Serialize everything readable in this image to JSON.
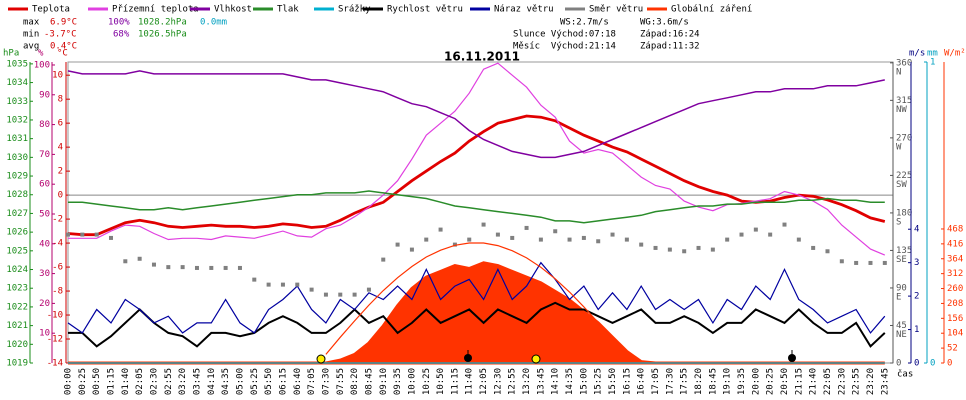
{
  "chart_data": {
    "type": "line",
    "title": "16.11.2011",
    "x_label": "čas",
    "categories": [
      "00:00",
      "00:25",
      "00:50",
      "01:15",
      "01:40",
      "02:05",
      "02:30",
      "02:55",
      "03:20",
      "03:45",
      "04:10",
      "04:35",
      "05:00",
      "05:25",
      "05:50",
      "06:15",
      "06:40",
      "07:05",
      "07:30",
      "07:55",
      "08:20",
      "08:45",
      "09:10",
      "09:35",
      "10:00",
      "10:25",
      "10:50",
      "11:15",
      "11:40",
      "12:05",
      "12:30",
      "12:55",
      "13:20",
      "13:45",
      "14:10",
      "14:35",
      "15:00",
      "15:25",
      "15:50",
      "16:15",
      "16:40",
      "17:05",
      "17:30",
      "17:55",
      "18:20",
      "18:45",
      "19:10",
      "19:35",
      "20:00",
      "20:25",
      "20:50",
      "21:15",
      "21:40",
      "22:05",
      "22:30",
      "22:55",
      "23:20",
      "23:45"
    ],
    "y_unit": "°C",
    "y_color": "#d00000",
    "ylim": [
      -14,
      11.1
    ],
    "yticks": [
      -14,
      -12,
      -10,
      -8,
      -6,
      -4,
      -2,
      0,
      2,
      4,
      6,
      8,
      10
    ],
    "zero_line": true,
    "axes": {
      "hpa": {
        "unit": "hPa",
        "color": "#1a8c1a",
        "lim": [
          1019,
          1035.1
        ],
        "ticks": [
          1019,
          1020,
          1021,
          1022,
          1023,
          1024,
          1025,
          1026,
          1027,
          1028,
          1029,
          1030,
          1031,
          1032,
          1033,
          1034,
          1035
        ]
      },
      "pct": {
        "unit": "%",
        "color": "#b4006e",
        "lim": [
          0,
          101
        ],
        "ticks": [
          10,
          20,
          30,
          40,
          50,
          60,
          70,
          80,
          90,
          100
        ]
      },
      "dir": {
        "color": "#555555",
        "lim": [
          0,
          361
        ],
        "ticks": [
          0,
          45,
          90,
          135,
          180,
          225,
          270,
          315,
          360
        ],
        "compass": [
          {
            "value": 45,
            "label": "NE"
          },
          {
            "value": 90,
            "label": "E"
          },
          {
            "value": 135,
            "label": "SE"
          },
          {
            "value": 180,
            "label": "S"
          },
          {
            "value": 225,
            "label": "SW"
          },
          {
            "value": 270,
            "label": "W"
          },
          {
            "value": 315,
            "label": "NW"
          },
          {
            "value": 360,
            "label": "N"
          }
        ]
      },
      "ms": {
        "unit": "m/s",
        "color": "#000080",
        "lim": [
          0,
          9
        ],
        "ticks": [
          0,
          1,
          2,
          3,
          4
        ]
      },
      "mm": {
        "unit": "mm",
        "color": "#00a0c0",
        "lim": [
          0,
          1
        ],
        "ticks": [
          0,
          1
        ]
      },
      "wm": {
        "unit": "W/m²",
        "color": "#ff3300",
        "lim": [
          0,
          1051
        ],
        "ticks": [
          0,
          52,
          104,
          156,
          208,
          260,
          312,
          364,
          416,
          468
        ]
      }
    },
    "series": [
      {
        "name": "Teplota",
        "color": "#e00000",
        "style": "line",
        "values": [
          -3.2,
          -3.3,
          -3.3,
          -2.8,
          -2.3,
          -2.1,
          -2.3,
          -2.6,
          -2.7,
          -2.6,
          -2.5,
          -2.6,
          -2.6,
          -2.7,
          -2.6,
          -2.4,
          -2.5,
          -2.7,
          -2.6,
          -2.1,
          -1.5,
          -1.0,
          -0.6,
          0.3,
          1.2,
          2.0,
          2.8,
          3.5,
          4.5,
          5.3,
          6.0,
          6.3,
          6.6,
          6.5,
          6.2,
          5.6,
          5.0,
          4.5,
          4.0,
          3.6,
          3.0,
          2.4,
          1.8,
          1.2,
          0.7,
          0.3,
          0.0,
          -0.5,
          -0.6,
          -0.5,
          -0.2,
          0.0,
          -0.1,
          -0.4,
          -0.8,
          -1.3,
          -1.9,
          -2.2
        ]
      },
      {
        "name": "Přízemní teplota",
        "color": "#e040e0",
        "style": "line",
        "values": [
          -3.6,
          -3.6,
          -3.6,
          -3.0,
          -2.5,
          -2.6,
          -3.2,
          -3.7,
          -3.6,
          -3.6,
          -3.7,
          -3.4,
          -3.5,
          -3.6,
          -3.3,
          -3.0,
          -3.4,
          -3.5,
          -2.8,
          -2.5,
          -1.8,
          -1.0,
          0.0,
          1.2,
          3.0,
          5.0,
          6.0,
          7.0,
          8.5,
          10.5,
          11.0,
          10.0,
          9.0,
          7.5,
          6.5,
          4.5,
          3.5,
          3.8,
          3.5,
          2.5,
          1.5,
          0.8,
          0.5,
          -0.5,
          -1.0,
          -1.3,
          -0.8,
          -0.7,
          -0.5,
          -0.3,
          0.3,
          0.0,
          -0.5,
          -1.2,
          -2.5,
          -3.5,
          -4.5,
          -5.0
        ]
      },
      {
        "name": "Vlhkost",
        "color": "#8000a0",
        "style": "line",
        "axis": "pct",
        "values": [
          98,
          97,
          97,
          97,
          97,
          98,
          97,
          97,
          97,
          97,
          97,
          97,
          97,
          97,
          97,
          97,
          96,
          95,
          95,
          94,
          93,
          92,
          91,
          89,
          87,
          86,
          84,
          82,
          78,
          75,
          73,
          71,
          70,
          69,
          69,
          70,
          71,
          73,
          75,
          77,
          79,
          81,
          83,
          85,
          87,
          88,
          89,
          90,
          91,
          91,
          92,
          92,
          92,
          93,
          93,
          93,
          94,
          95
        ]
      },
      {
        "name": "Tlak",
        "color": "#2a8c2a",
        "style": "line",
        "axis": "hpa",
        "values": [
          1027.6,
          1027.6,
          1027.5,
          1027.4,
          1027.3,
          1027.2,
          1027.2,
          1027.3,
          1027.2,
          1027.3,
          1027.4,
          1027.5,
          1027.6,
          1027.7,
          1027.8,
          1027.9,
          1028.0,
          1028.0,
          1028.1,
          1028.1,
          1028.1,
          1028.2,
          1028.1,
          1028.0,
          1027.9,
          1027.8,
          1027.6,
          1027.4,
          1027.3,
          1027.2,
          1027.1,
          1027.0,
          1026.9,
          1026.8,
          1026.6,
          1026.6,
          1026.5,
          1026.6,
          1026.7,
          1026.8,
          1026.9,
          1027.1,
          1027.2,
          1027.3,
          1027.4,
          1027.4,
          1027.5,
          1027.5,
          1027.6,
          1027.6,
          1027.6,
          1027.7,
          1027.7,
          1027.8,
          1027.7,
          1027.7,
          1027.6,
          1027.6
        ]
      },
      {
        "name": "Srážky",
        "color": "#00b0d0",
        "style": "line",
        "axis": "mm",
        "values": [
          0,
          0,
          0,
          0,
          0,
          0,
          0,
          0,
          0,
          0,
          0,
          0,
          0,
          0,
          0,
          0,
          0,
          0,
          0,
          0,
          0,
          0,
          0,
          0,
          0,
          0,
          0,
          0,
          0,
          0,
          0,
          0,
          0,
          0,
          0,
          0,
          0,
          0,
          0,
          0,
          0,
          0,
          0,
          0,
          0,
          0,
          0,
          0,
          0,
          0,
          0,
          0,
          0,
          0,
          0,
          0,
          0,
          0
        ]
      },
      {
        "name": "Rychlost větru",
        "color": "#000000",
        "style": "step",
        "axis": "ms",
        "values": [
          0.9,
          0.9,
          0.5,
          0.8,
          1.2,
          1.6,
          1.2,
          0.9,
          0.8,
          0.5,
          0.9,
          0.9,
          0.8,
          0.9,
          1.2,
          1.4,
          1.2,
          0.9,
          0.9,
          1.2,
          1.6,
          1.2,
          1.4,
          0.9,
          1.2,
          1.6,
          1.2,
          1.4,
          1.6,
          1.2,
          1.6,
          1.4,
          1.2,
          1.6,
          1.8,
          1.6,
          1.6,
          1.4,
          1.2,
          1.4,
          1.6,
          1.2,
          1.2,
          1.4,
          1.2,
          0.9,
          1.2,
          1.2,
          1.6,
          1.4,
          1.2,
          1.6,
          1.2,
          0.9,
          0.9,
          1.2,
          0.5,
          0.9
        ]
      },
      {
        "name": "Náraz větru",
        "color": "#0000a0",
        "style": "line",
        "axis": "ms",
        "values": [
          1.2,
          0.9,
          1.6,
          1.2,
          1.9,
          1.6,
          1.2,
          1.4,
          0.9,
          1.2,
          1.2,
          1.9,
          1.2,
          0.9,
          1.6,
          1.9,
          2.3,
          1.6,
          1.2,
          1.9,
          1.6,
          2.1,
          1.9,
          2.3,
          1.9,
          2.8,
          1.9,
          2.3,
          2.5,
          1.9,
          2.8,
          1.9,
          2.3,
          3.0,
          2.5,
          1.9,
          2.3,
          1.6,
          2.1,
          1.6,
          2.3,
          1.6,
          1.9,
          1.6,
          1.9,
          1.2,
          1.9,
          1.6,
          2.3,
          1.9,
          2.8,
          1.9,
          1.6,
          1.2,
          1.4,
          1.6,
          0.9,
          1.4
        ]
      },
      {
        "name": "Směr větru",
        "color": "#808080",
        "style": "dots",
        "axis": "dir",
        "values": [
          154,
          154,
          154,
          150,
          122,
          125,
          118,
          115,
          115,
          114,
          114,
          114,
          114,
          100,
          94,
          94,
          94,
          88,
          82,
          82,
          82,
          88,
          124,
          142,
          136,
          148,
          160,
          142,
          148,
          166,
          154,
          150,
          162,
          148,
          158,
          148,
          150,
          146,
          154,
          148,
          142,
          138,
          136,
          134,
          138,
          136,
          148,
          154,
          160,
          154,
          166,
          148,
          138,
          134,
          122,
          120,
          120,
          120
        ]
      },
      {
        "name": "Globální záření",
        "color": "#ff3300",
        "style": "area",
        "axis": "wm",
        "values": [
          0,
          0,
          0,
          0,
          0,
          0,
          0,
          0,
          0,
          0,
          0,
          0,
          0,
          0,
          0,
          0,
          0,
          0,
          0,
          10,
          30,
          70,
          130,
          200,
          260,
          300,
          320,
          340,
          330,
          350,
          340,
          320,
          300,
          280,
          250,
          220,
          180,
          140,
          90,
          40,
          5,
          0,
          0,
          0,
          0,
          0,
          0,
          0,
          0,
          0,
          0,
          0,
          0,
          0,
          0,
          0,
          0,
          0
        ]
      },
      {
        "color": "#ff3300",
        "style": "thin",
        "axis": "wm",
        "values": [
          null,
          null,
          null,
          null,
          null,
          null,
          null,
          null,
          null,
          null,
          null,
          null,
          null,
          null,
          null,
          null,
          null,
          null,
          30,
          90,
          147,
          202,
          253,
          298,
          337,
          370,
          394,
          411,
          419,
          419,
          410,
          392,
          367,
          334,
          294,
          248,
          196,
          141,
          84,
          24,
          null,
          null,
          null,
          null,
          null,
          null,
          null,
          null,
          null,
          null,
          null,
          null,
          null,
          null,
          null,
          null,
          null,
          null
        ]
      }
    ],
    "stats": [
      {
        "label": "max",
        "temperature": "6.9°C",
        "humidity": "100%",
        "pressure": "1028.2hPa",
        "rain": "0.0mm"
      },
      {
        "label": "min",
        "temperature": "-3.7°C",
        "humidity": "68%",
        "pressure": "1026.5hPa"
      },
      {
        "label": "avg",
        "temperature": "0.4°C"
      }
    ],
    "info": {
      "wind": [
        "WS:2.7m/s",
        "WG:3.6m/s"
      ],
      "sun": [
        "Slunce Východ:07:18",
        "Západ:16:24"
      ],
      "moon": [
        "Měsíc  Východ:21:14",
        "Západ:11:32"
      ]
    }
  }
}
